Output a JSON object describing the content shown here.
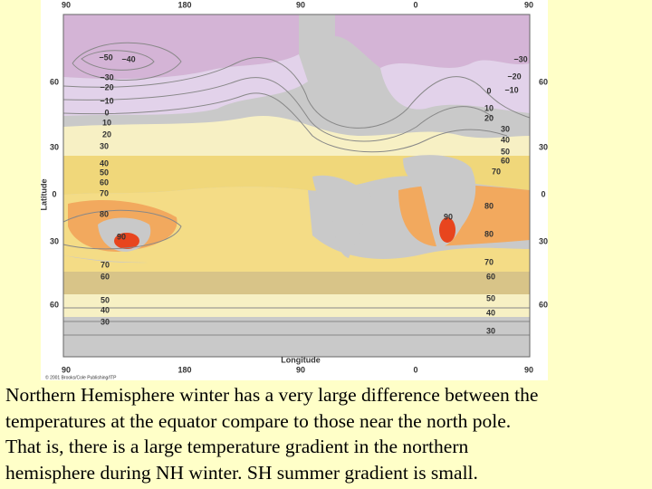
{
  "map": {
    "top_ticks": [
      "90",
      "180",
      "90",
      "0",
      "90"
    ],
    "bottom_ticks": [
      "90",
      "180",
      "90",
      "0",
      "90"
    ],
    "left_ticks": [
      "60",
      "30",
      "0",
      "30",
      "60"
    ],
    "right_ticks": [
      "60",
      "30",
      "0",
      "30",
      "60"
    ],
    "y_label": "Latitude",
    "x_label": "Longitude",
    "credit": "© 2001 Brooks/Cole Publishing/ITP",
    "isotherms": [
      "−50",
      "−40",
      "−30",
      "−20",
      "−10",
      "0",
      "10",
      "20",
      "30",
      "40",
      "50",
      "60",
      "70",
      "80",
      "90",
      "70",
      "60",
      "50",
      "40",
      "30",
      "−30",
      "−20",
      "0",
      "−10",
      "10",
      "20",
      "30",
      "40",
      "50",
      "60",
      "70",
      "80",
      "90",
      "80",
      "70",
      "60",
      "50",
      "40",
      "30"
    ]
  },
  "caption": [
    "Northern Hemisphere winter has a very large difference between the",
    "temperatures at the equator compare to those near the north pole.",
    "That is, there is a large temperature gradient in the northern",
    "hemisphere during NH winter.  SH summer gradient is small."
  ]
}
